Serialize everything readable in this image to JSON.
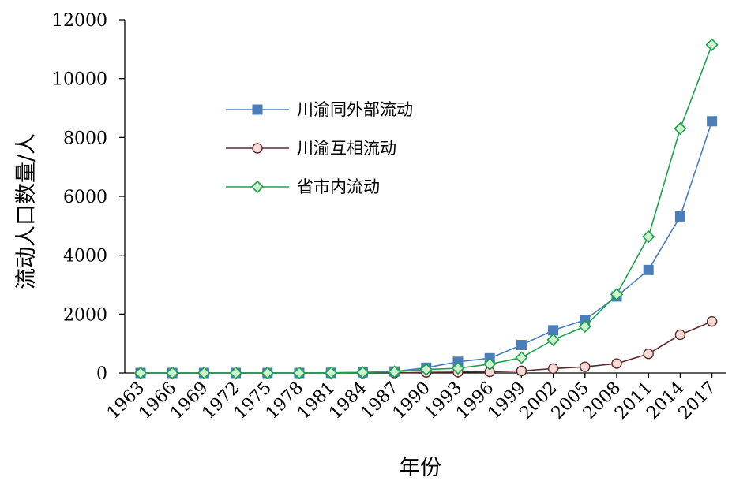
{
  "chart_data": {
    "type": "line",
    "xlabel": "年份",
    "ylabel": "流动人口数量/人",
    "ylim": [
      0,
      12000
    ],
    "yticks": [
      0,
      2000,
      4000,
      6000,
      8000,
      10000,
      12000
    ],
    "x": [
      1963,
      1966,
      1969,
      1972,
      1975,
      1978,
      1981,
      1984,
      1987,
      1990,
      1993,
      1996,
      1999,
      2002,
      2005,
      2008,
      2011,
      2014,
      2017
    ],
    "legend_position": "upper-left-inside",
    "grid": false,
    "series": [
      {
        "name": "川渝同外部流动",
        "color": "#4a7ebb",
        "marker": "square",
        "values": [
          0,
          0,
          0,
          0,
          0,
          0,
          5,
          20,
          50,
          180,
          380,
          500,
          950,
          1450,
          1800,
          2600,
          3500,
          5320,
          8550
        ]
      },
      {
        "name": "川渝互相流动",
        "color": "#5a2b2b",
        "marker": "circle",
        "values": [
          0,
          0,
          0,
          0,
          0,
          0,
          0,
          0,
          0,
          20,
          30,
          40,
          70,
          150,
          210,
          320,
          650,
          1300,
          1750
        ]
      },
      {
        "name": "省市内流动",
        "color": "#1aa34a",
        "marker": "diamond",
        "values": [
          0,
          0,
          0,
          0,
          0,
          0,
          5,
          20,
          40,
          120,
          160,
          300,
          520,
          1130,
          1580,
          2670,
          4630,
          8300,
          11150
        ]
      }
    ]
  }
}
